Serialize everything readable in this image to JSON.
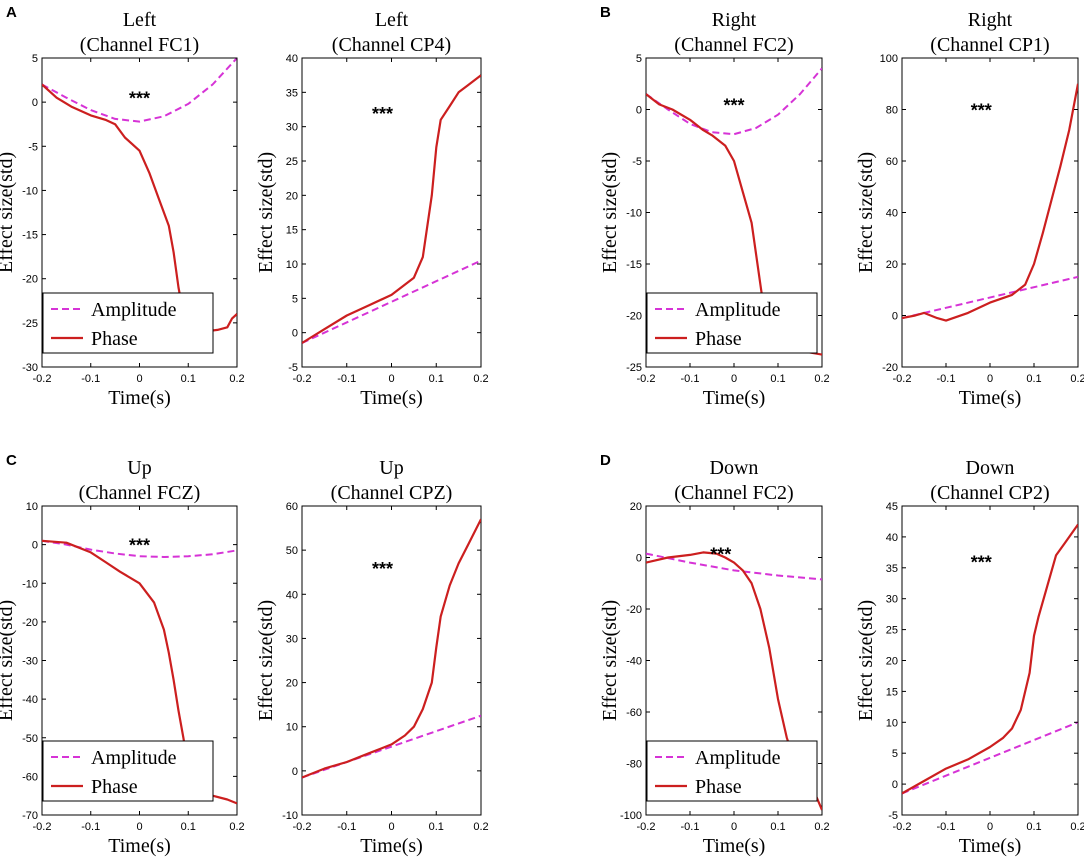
{
  "chart_data": [
    {
      "type": "line",
      "panel": "A",
      "title_line1": "Left",
      "title_line2": "(Channel FC1)",
      "xlabel": "Time(s)",
      "ylabel": "Effect size(std)",
      "xlim": [
        -0.2,
        0.2
      ],
      "ylim": [
        -30,
        5
      ],
      "xticks": [
        "-0.2",
        "-0.1",
        "0",
        "0.1",
        "0.2"
      ],
      "yticks": [
        "-30",
        "-25",
        "-20",
        "-15",
        "-10",
        "-5",
        "0",
        "5"
      ],
      "annotation": "***",
      "annotation_pos": [
        0,
        0.5
      ],
      "legend": {
        "show": true,
        "location": "bottom-left"
      },
      "series": [
        {
          "name": "Amplitude",
          "style": "dashed",
          "color": "#d633d6",
          "x": [
            -0.2,
            -0.15,
            -0.1,
            -0.05,
            0,
            0.05,
            0.1,
            0.15,
            0.2
          ],
          "y": [
            2,
            0.5,
            -0.9,
            -1.9,
            -2.2,
            -1.6,
            -0.2,
            2,
            5
          ]
        },
        {
          "name": "Phase",
          "style": "solid",
          "color": "#cc1f1f",
          "x": [
            -0.2,
            -0.17,
            -0.14,
            -0.1,
            -0.07,
            -0.05,
            -0.03,
            0,
            0.02,
            0.04,
            0.06,
            0.07,
            0.08,
            0.09,
            0.1,
            0.13,
            0.16,
            0.18,
            0.19,
            0.2
          ],
          "y": [
            2,
            0.5,
            -0.5,
            -1.5,
            -2,
            -2.5,
            -4,
            -5.5,
            -8,
            -11,
            -14,
            -17,
            -21,
            -24,
            -25.5,
            -26,
            -25.8,
            -25.5,
            -24.5,
            -24
          ]
        }
      ]
    },
    {
      "type": "line",
      "panel": "",
      "title_line1": "Left",
      "title_line2": "(Channel CP4)",
      "xlabel": "Time(s)",
      "ylabel": "Effect size(std)",
      "xlim": [
        -0.2,
        0.2
      ],
      "ylim": [
        -5,
        40
      ],
      "xticks": [
        "-0.2",
        "-0.1",
        "0",
        "0.1",
        "0.2"
      ],
      "yticks": [
        "-5",
        "0",
        "5",
        "10",
        "15",
        "20",
        "25",
        "30",
        "35",
        "40"
      ],
      "annotation": "***",
      "annotation_pos": [
        -0.02,
        32
      ],
      "legend": {
        "show": false
      },
      "series": [
        {
          "name": "Amplitude",
          "style": "dashed",
          "color": "#d633d6",
          "x": [
            -0.2,
            0.2
          ],
          "y": [
            -1.5,
            10.5
          ]
        },
        {
          "name": "Phase",
          "style": "solid",
          "color": "#cc1f1f",
          "x": [
            -0.2,
            -0.15,
            -0.1,
            -0.05,
            0,
            0.03,
            0.05,
            0.07,
            0.09,
            0.1,
            0.11,
            0.13,
            0.15,
            0.17,
            0.2
          ],
          "y": [
            -1.5,
            0.5,
            2.5,
            4,
            5.5,
            7,
            8,
            11,
            20,
            27,
            31,
            33,
            35,
            36,
            37.5
          ]
        }
      ]
    },
    {
      "type": "line",
      "panel": "B",
      "title_line1": "Right",
      "title_line2": "(Channel FC2)",
      "xlabel": "Time(s)",
      "ylabel": "Effect size(std)",
      "xlim": [
        -0.2,
        0.2
      ],
      "ylim": [
        -25,
        5
      ],
      "xticks": [
        "-0.2",
        "-0.1",
        "0",
        "0.1",
        "0.2"
      ],
      "yticks": [
        "-25",
        "-20",
        "-15",
        "-10",
        "-5",
        "0",
        "5"
      ],
      "annotation": "***",
      "annotation_pos": [
        0,
        0.5
      ],
      "legend": {
        "show": true,
        "location": "bottom-left"
      },
      "series": [
        {
          "name": "Amplitude",
          "style": "dashed",
          "color": "#d633d6",
          "x": [
            -0.2,
            -0.15,
            -0.1,
            -0.05,
            0,
            0.05,
            0.1,
            0.15,
            0.2
          ],
          "y": [
            1.5,
            0,
            -1.4,
            -2.2,
            -2.4,
            -1.8,
            -0.5,
            1.5,
            4
          ]
        },
        {
          "name": "Phase",
          "style": "solid",
          "color": "#cc1f1f",
          "x": [
            -0.2,
            -0.17,
            -0.14,
            -0.1,
            -0.07,
            -0.05,
            -0.02,
            0,
            0.02,
            0.04,
            0.05,
            0.06,
            0.07,
            0.08,
            0.1,
            0.13,
            0.16,
            0.2
          ],
          "y": [
            1.5,
            0.5,
            0,
            -1,
            -2,
            -2.5,
            -3.5,
            -5,
            -8,
            -11,
            -14,
            -17,
            -20,
            -22,
            -23,
            -23.5,
            -23.5,
            -23.8
          ]
        }
      ]
    },
    {
      "type": "line",
      "panel": "",
      "title_line1": "Right",
      "title_line2": "(Channel CP1)",
      "xlabel": "Time(s)",
      "ylabel": "Effect size(std)",
      "xlim": [
        -0.2,
        0.2
      ],
      "ylim": [
        -20,
        100
      ],
      "xticks": [
        "-0.2",
        "-0.1",
        "0",
        "0.1",
        "0.2"
      ],
      "yticks": [
        "-20",
        "0",
        "20",
        "40",
        "60",
        "80",
        "100"
      ],
      "annotation": "***",
      "annotation_pos": [
        -0.02,
        80
      ],
      "legend": {
        "show": false
      },
      "series": [
        {
          "name": "Amplitude",
          "style": "dashed",
          "color": "#d633d6",
          "x": [
            -0.2,
            0.2
          ],
          "y": [
            -1,
            15
          ]
        },
        {
          "name": "Phase",
          "style": "solid",
          "color": "#cc1f1f",
          "x": [
            -0.2,
            -0.17,
            -0.15,
            -0.12,
            -0.1,
            -0.05,
            0,
            0.05,
            0.08,
            0.1,
            0.12,
            0.14,
            0.16,
            0.18,
            0.2
          ],
          "y": [
            -1,
            0,
            1,
            -1,
            -2,
            1,
            5,
            8,
            12,
            20,
            32,
            45,
            58,
            72,
            90
          ]
        }
      ]
    },
    {
      "type": "line",
      "panel": "C",
      "title_line1": "Up",
      "title_line2": "(Channel FCZ)",
      "xlabel": "Time(s)",
      "ylabel": "Effect size(std)",
      "xlim": [
        -0.2,
        0.2
      ],
      "ylim": [
        -70,
        10
      ],
      "xticks": [
        "-0.2",
        "-0.1",
        "0",
        "0.1",
        "0.2"
      ],
      "yticks": [
        "-70",
        "-60",
        "-50",
        "-40",
        "-30",
        "-20",
        "-10",
        "0",
        "10"
      ],
      "annotation": "***",
      "annotation_pos": [
        0,
        0
      ],
      "legend": {
        "show": true,
        "location": "bottom-left"
      },
      "series": [
        {
          "name": "Amplitude",
          "style": "dashed",
          "color": "#d633d6",
          "x": [
            -0.2,
            -0.15,
            -0.1,
            -0.05,
            0,
            0.05,
            0.1,
            0.15,
            0.2
          ],
          "y": [
            1,
            0,
            -1.3,
            -2.3,
            -3,
            -3.2,
            -3,
            -2.5,
            -1.5
          ]
        },
        {
          "name": "Phase",
          "style": "solid",
          "color": "#cc1f1f",
          "x": [
            -0.2,
            -0.15,
            -0.1,
            -0.07,
            -0.04,
            0,
            0.03,
            0.05,
            0.06,
            0.07,
            0.08,
            0.09,
            0.1,
            0.12,
            0.15,
            0.18,
            0.2
          ],
          "y": [
            1,
            0.5,
            -2,
            -4.5,
            -7,
            -10,
            -15,
            -22,
            -28,
            -35,
            -43,
            -50,
            -58,
            -63,
            -65,
            -66,
            -67
          ]
        }
      ]
    },
    {
      "type": "line",
      "panel": "",
      "title_line1": "Up",
      "title_line2": "(Channel CPZ)",
      "xlabel": "Time(s)",
      "ylabel": "Effect size(std)",
      "xlim": [
        -0.2,
        0.2
      ],
      "ylim": [
        -10,
        60
      ],
      "xticks": [
        "-0.2",
        "-0.1",
        "0",
        "0.1",
        "0.2"
      ],
      "yticks": [
        "-10",
        "0",
        "10",
        "20",
        "30",
        "40",
        "50",
        "60"
      ],
      "annotation": "***",
      "annotation_pos": [
        -0.02,
        46
      ],
      "legend": {
        "show": false
      },
      "series": [
        {
          "name": "Amplitude",
          "style": "dashed",
          "color": "#d633d6",
          "x": [
            -0.2,
            0.2
          ],
          "y": [
            -1.5,
            12.5
          ]
        },
        {
          "name": "Phase",
          "style": "solid",
          "color": "#cc1f1f",
          "x": [
            -0.2,
            -0.15,
            -0.1,
            -0.05,
            0,
            0.03,
            0.05,
            0.07,
            0.09,
            0.1,
            0.11,
            0.13,
            0.15,
            0.17,
            0.2
          ],
          "y": [
            -1.5,
            0.5,
            2,
            4,
            6,
            8,
            10,
            14,
            20,
            28,
            35,
            42,
            47,
            51,
            57
          ]
        }
      ]
    },
    {
      "type": "line",
      "panel": "D",
      "title_line1": "Down",
      "title_line2": "(Channel FC2)",
      "xlabel": "Time(s)",
      "ylabel": "Effect size(std)",
      "xlim": [
        -0.2,
        0.2
      ],
      "ylim": [
        -100,
        20
      ],
      "xticks": [
        "-0.2",
        "-0.1",
        "0",
        "0.1",
        "0.2"
      ],
      "yticks": [
        "-100",
        "-80",
        "-60",
        "-40",
        "-20",
        "0",
        "20"
      ],
      "annotation": "***",
      "annotation_pos": [
        -0.03,
        1.5
      ],
      "legend": {
        "show": true,
        "location": "bottom-left"
      },
      "series": [
        {
          "name": "Amplitude",
          "style": "dashed",
          "color": "#d633d6",
          "x": [
            -0.2,
            -0.1,
            0,
            0.1,
            0.2
          ],
          "y": [
            1.5,
            -2,
            -5,
            -7,
            -8.5
          ]
        },
        {
          "name": "Phase",
          "style": "solid",
          "color": "#cc1f1f",
          "x": [
            -0.2,
            -0.15,
            -0.1,
            -0.07,
            -0.04,
            -0.02,
            0,
            0.02,
            0.04,
            0.06,
            0.08,
            0.1,
            0.12,
            0.14,
            0.16,
            0.18,
            0.2
          ],
          "y": [
            -2,
            0,
            1,
            2,
            1.5,
            0,
            -2,
            -5,
            -10,
            -20,
            -35,
            -55,
            -70,
            -80,
            -85,
            -90,
            -98
          ]
        }
      ]
    },
    {
      "type": "line",
      "panel": "",
      "title_line1": "Down",
      "title_line2": "(Channel CP2)",
      "xlabel": "Time(s)",
      "ylabel": "Effect size(std)",
      "xlim": [
        -0.2,
        0.2
      ],
      "ylim": [
        -5,
        45
      ],
      "xticks": [
        "-0.2",
        "-0.1",
        "0",
        "0.1",
        "0.2"
      ],
      "yticks": [
        "-5",
        "0",
        "5",
        "10",
        "15",
        "20",
        "25",
        "30",
        "35",
        "40",
        "45"
      ],
      "annotation": "***",
      "annotation_pos": [
        -0.02,
        36
      ],
      "legend": {
        "show": false
      },
      "series": [
        {
          "name": "Amplitude",
          "style": "dashed",
          "color": "#d633d6",
          "x": [
            -0.2,
            0.2
          ],
          "y": [
            -1.5,
            10
          ]
        },
        {
          "name": "Phase",
          "style": "solid",
          "color": "#cc1f1f",
          "x": [
            -0.2,
            -0.15,
            -0.1,
            -0.05,
            0,
            0.03,
            0.05,
            0.07,
            0.09,
            0.1,
            0.11,
            0.13,
            0.15,
            0.17,
            0.2
          ],
          "y": [
            -1.5,
            0.5,
            2.5,
            4,
            6,
            7.5,
            9,
            12,
            18,
            24,
            27,
            32,
            37,
            39,
            42
          ]
        }
      ]
    }
  ]
}
